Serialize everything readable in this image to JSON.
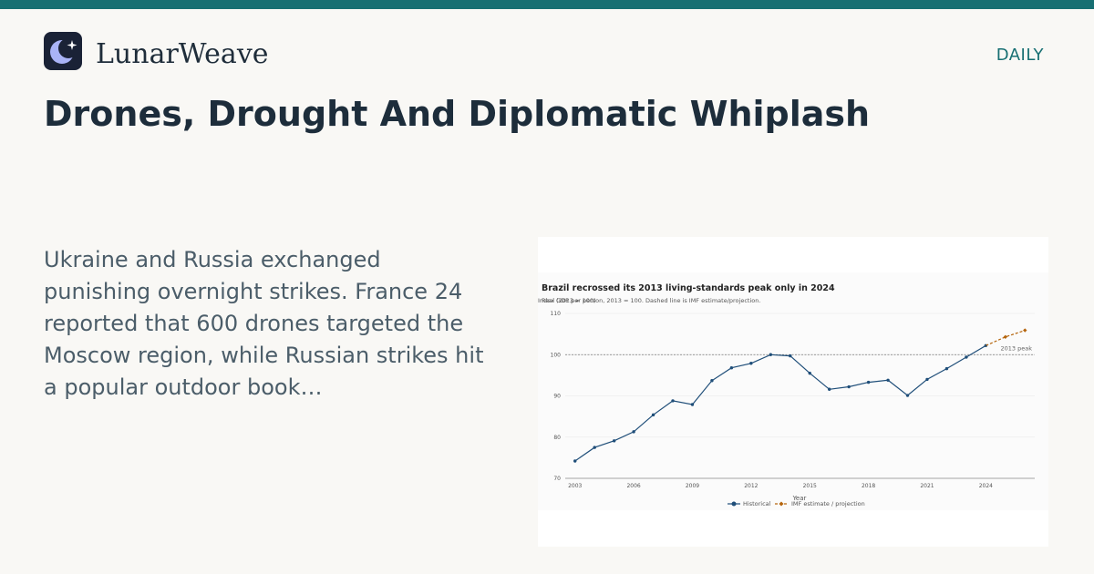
{
  "brand": {
    "name": "LunarWeave",
    "logo_icon": "crescent-moon-star-icon",
    "accent_color": "#176f72"
  },
  "section_tag": "DAILY",
  "headline": "Drones, Drought And Diplomatic Whiplash",
  "summary": "Ukraine and Russia exchanged punishing overnight strikes. France 24 reported that 600 drones targeted the Moscow region, while Russian strikes hit a popular outdoor book…",
  "chart_data": {
    "type": "line",
    "title": "Brazil recrossed its 2013 living-standards peak only in 2024",
    "subtitle": "Real GDP per person, 2013 = 100. Dashed line is IMF estimate/projection.",
    "ylabel_overlap": "Index (2013 = 100)",
    "xlabel": "Year",
    "ylim": [
      70,
      110
    ],
    "y_ticks": [
      70,
      80,
      90,
      100,
      110
    ],
    "x_ticks": [
      2003,
      2006,
      2009,
      2012,
      2015,
      2018,
      2021,
      2024
    ],
    "grid": "horizontal",
    "reference_line": {
      "y": 100,
      "label": "2013 peak"
    },
    "series": [
      {
        "name": "Historical",
        "color": "#1f4e79",
        "style": "solid",
        "x": [
          2003,
          2004,
          2005,
          2006,
          2007,
          2008,
          2009,
          2010,
          2011,
          2012,
          2013,
          2014,
          2015,
          2016,
          2017,
          2018,
          2019,
          2020,
          2021,
          2022,
          2023,
          2024
        ],
        "values": [
          74.2,
          77.5,
          79.1,
          81.3,
          85.4,
          88.8,
          87.9,
          93.7,
          96.8,
          97.9,
          100.0,
          99.7,
          95.5,
          91.6,
          92.2,
          93.3,
          93.8,
          90.1,
          94.0,
          96.6,
          99.4,
          102.2
        ]
      },
      {
        "name": "IMF estimate / projection",
        "color": "#b5650d",
        "style": "dashed",
        "x": [
          2024,
          2025,
          2026
        ],
        "values": [
          102.2,
          104.3,
          105.9
        ]
      }
    ],
    "legend_position": "bottom-center"
  }
}
